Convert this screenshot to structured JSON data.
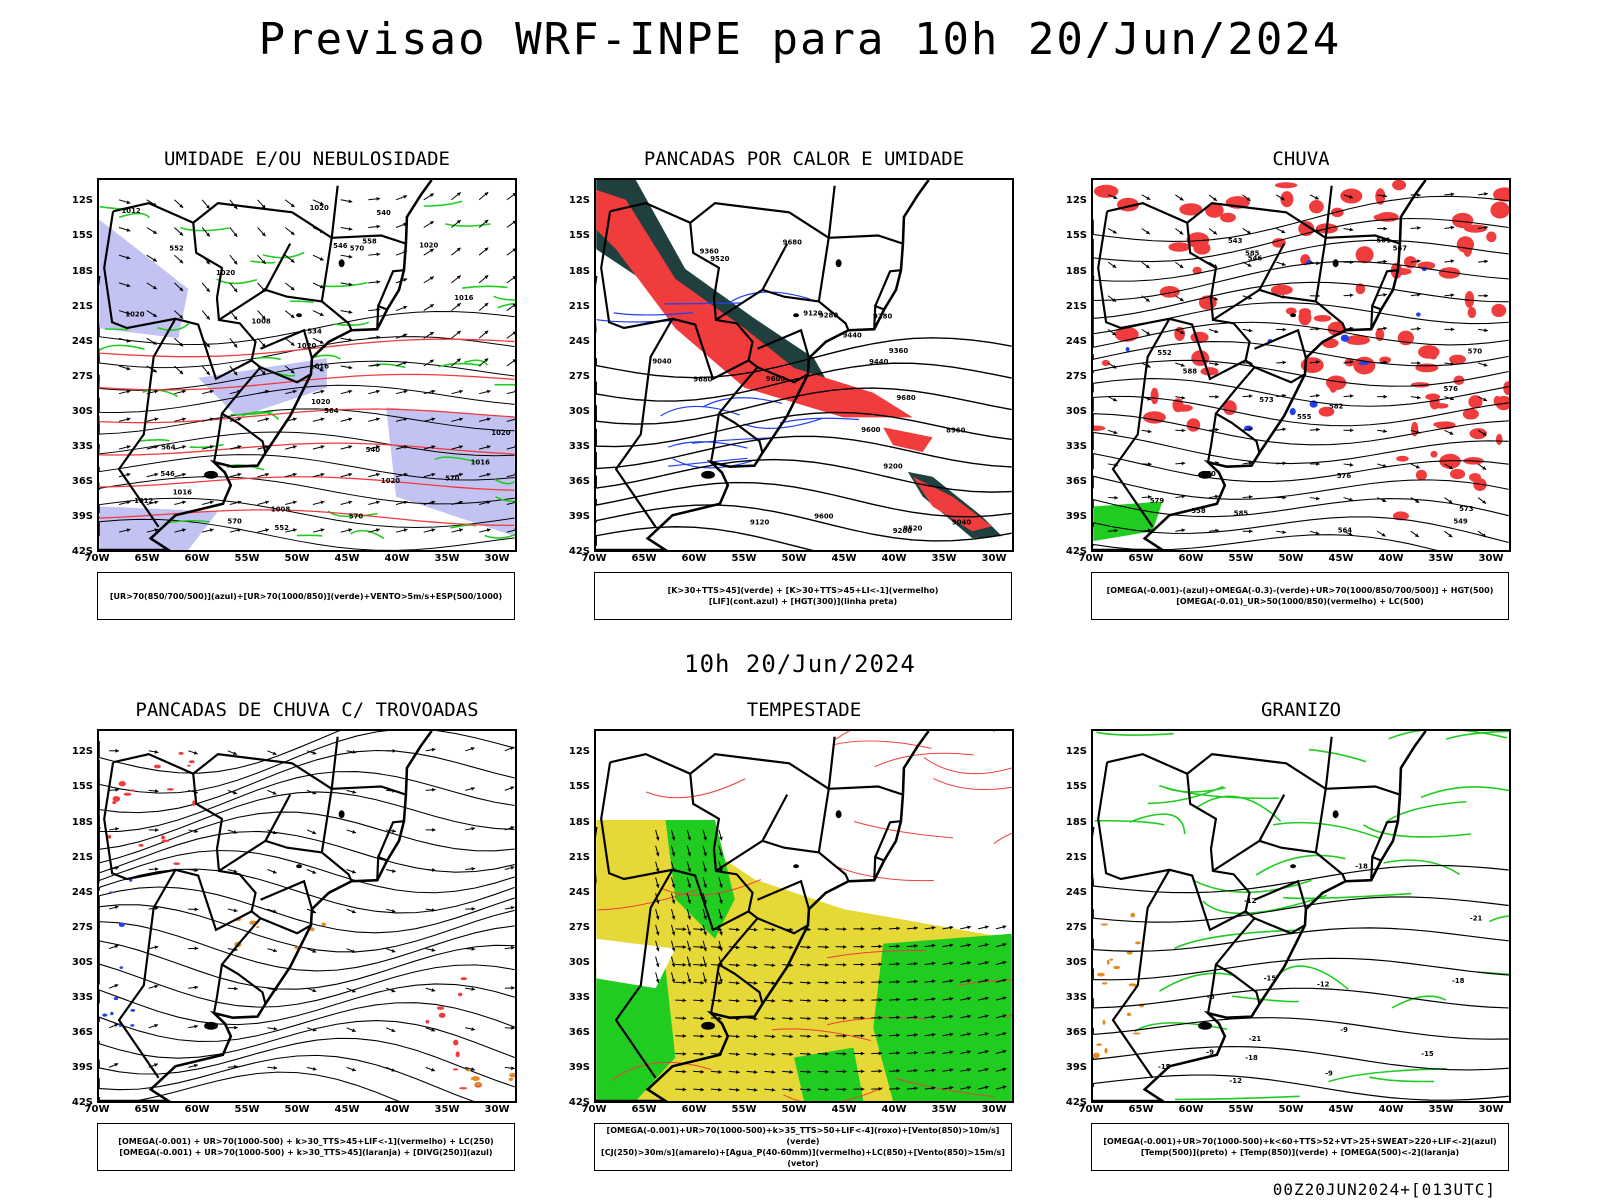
{
  "title": "Previsao WRF-INPE  para 10h 20/Jun/2024",
  "subtitle": "10h 20/Jun/2024",
  "footer": "00Z20JUN2024+[013UTC]",
  "axes": {
    "lat": [
      "12S",
      "15S",
      "18S",
      "21S",
      "24S",
      "27S",
      "30S",
      "33S",
      "36S",
      "39S",
      "42S"
    ],
    "lon": [
      "70W",
      "65W",
      "60W",
      "55W",
      "50W",
      "45W",
      "40W",
      "35W",
      "30W"
    ]
  },
  "colors": {
    "red": "#f03c3c",
    "green": "#20cc20",
    "blue": "#2040f0",
    "lavender": "#b4b4f0",
    "teal": "#204040",
    "yellow": "#e6d837",
    "orange": "#e68a20"
  },
  "panels": [
    {
      "title": "UMIDADE E/OU NEBULOSIDADE",
      "legend": [
        "[UR>70(850/700/500)](azul)+[UR>70(1000/850)](verde)+VENTO>5m/s+ESP(500/1000)"
      ],
      "contour_labels": [
        "1020",
        "1016",
        "1020",
        "1020",
        "1016",
        "1012",
        "1020",
        "1020",
        "1016",
        "1020",
        "1020",
        "1012",
        "1008",
        "1008",
        "1016",
        "1020",
        "570",
        "570",
        "564",
        "558",
        "552",
        "546",
        "540",
        "534",
        "570",
        "564",
        "570",
        "546",
        "552",
        "540"
      ]
    },
    {
      "title": "PANCADAS POR CALOR E UMIDADE",
      "legend": [
        "[K>30+TTS>45](verde) + [K>30+TTS>45+LI<-1](vermelho)",
        "[LIF](cont.azul) + [HGT(300)](linha preta)"
      ],
      "contour_labels": [
        "9680",
        "9680",
        "9600",
        "9520",
        "9600",
        "9680",
        "9440",
        "9360",
        "9280",
        "9200",
        "9120",
        "9040",
        "8960",
        "9360",
        "9440",
        "9520",
        "9600",
        "9280",
        "9200",
        "9120",
        "9040"
      ]
    },
    {
      "title": "CHUVA",
      "legend": [
        "[OMEGA(-0.001)-(azul)+OMEGA(-0.3)-(verde)+UR>70(1000/850/700/500)] + HGT(500)",
        "[OMEGA(-0.01)_UR>50(1000/850)(vermelho) + LC(500)"
      ],
      "contour_labels": [
        "588",
        "585",
        "585",
        "582",
        "579",
        "576",
        "573",
        "570",
        "567",
        "564",
        "561",
        "558",
        "555",
        "552",
        "549",
        "546",
        "543",
        "576",
        "573",
        "570"
      ]
    },
    {
      "title": "PANCADAS DE CHUVA C/ TROVOADAS",
      "legend": [
        "[OMEGA(-0.001) + UR>70(1000-500) + k>30_TTS>45+LIF<-1](vermelho) + LC(250)",
        "[OMEGA(-0.001) + UR>70(1000-500) + k>30_TTS>45](laranja) + [DIVG(250)](azul)"
      ],
      "contour_labels": []
    },
    {
      "title": "TEMPESTADE",
      "legend": [
        "[OMEGA(-0.001)+UR>70(1000-500)+k>35_TTS>50+LIF<-4](roxo)+[Vento(850)>10m/s](verde)",
        "[CJ(250)>30m/s](amarelo)+[Agua_P(40-60mm)](vermelho)+LC(850)+[Vento(850)>15m/s](vetor)"
      ],
      "contour_labels": []
    },
    {
      "title": "GRANIZO",
      "legend": [
        "[OMEGA(-0.001)+UR>70(1000-500)+k<60+TTS>52+VT>25+SWEAT>220+LIF<-2](azul)",
        "[Temp(500)](preto) + [Temp(850)](verde) + [OMEGA(500)<-2](laranja)"
      ],
      "contour_labels": [
        "-9",
        "-12",
        "-12",
        "-15",
        "-18",
        "-18",
        "-21",
        "-15",
        "-9",
        "-12",
        "-15",
        "-18",
        "-21",
        "-9",
        "-6"
      ]
    }
  ]
}
